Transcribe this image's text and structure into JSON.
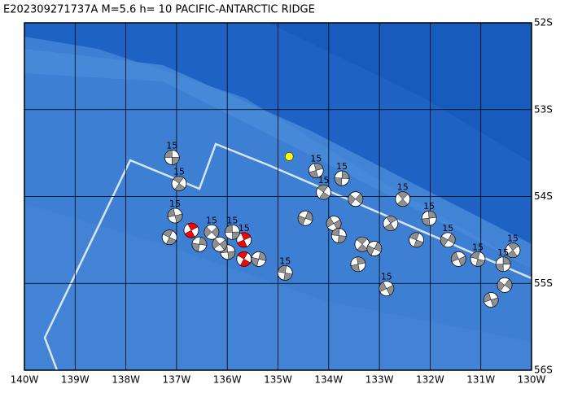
{
  "chart_data": {
    "type": "focal-map",
    "title": "E202309271737A M=5.6 h= 10 PACIFIC-ANTARCTIC RIDGE",
    "xlim": [
      -140,
      -130
    ],
    "ylim": [
      -56,
      -52
    ],
    "xticks": [
      {
        "value": -140,
        "label": "140W"
      },
      {
        "value": -139,
        "label": "139W"
      },
      {
        "value": -138,
        "label": "138W"
      },
      {
        "value": -137,
        "label": "137W"
      },
      {
        "value": -136,
        "label": "136W"
      },
      {
        "value": -135,
        "label": "135W"
      },
      {
        "value": -134,
        "label": "134W"
      },
      {
        "value": -133,
        "label": "133W"
      },
      {
        "value": -132,
        "label": "132W"
      },
      {
        "value": -131,
        "label": "131W"
      },
      {
        "value": -130,
        "label": "130W"
      }
    ],
    "yticks": [
      {
        "value": -52,
        "label": "52S"
      },
      {
        "value": -53,
        "label": "53S"
      },
      {
        "value": -54,
        "label": "54S"
      },
      {
        "value": -55,
        "label": "55S"
      },
      {
        "value": -56,
        "label": "56S"
      }
    ],
    "grid": true,
    "epicenter": {
      "lon": -134.78,
      "lat": -53.54,
      "color": "#ffff00"
    },
    "events": [
      {
        "lon": -137.09,
        "lat": -53.55,
        "label": "15",
        "color": "#909090"
      },
      {
        "lon": -136.95,
        "lat": -53.85,
        "label": "15",
        "color": "#909090"
      },
      {
        "lon": -134.25,
        "lat": -53.7,
        "label": "15",
        "color": "#909090"
      },
      {
        "lon": -134.46,
        "lat": -54.25,
        "color": "#909090"
      },
      {
        "lon": -133.9,
        "lat": -54.31,
        "color": "#909090"
      },
      {
        "lon": -133.8,
        "lat": -54.45,
        "color": "#909090"
      },
      {
        "lon": -133.34,
        "lat": -54.55,
        "color": "#909090"
      },
      {
        "lon": -133.42,
        "lat": -54.78,
        "color": "#909090"
      },
      {
        "lon": -133.1,
        "lat": -54.6,
        "color": "#909090"
      },
      {
        "lon": -132.86,
        "lat": -55.06,
        "label": "15",
        "color": "#909090"
      },
      {
        "lon": -134.86,
        "lat": -54.88,
        "label": "15",
        "color": "#909090"
      },
      {
        "lon": -132.54,
        "lat": -54.03,
        "label": "15",
        "color": "#909090"
      },
      {
        "lon": -132.02,
        "lat": -54.25,
        "label": "15",
        "color": "#909090"
      },
      {
        "lon": -131.65,
        "lat": -54.5,
        "label": "15",
        "color": "#909090"
      },
      {
        "lon": -131.44,
        "lat": -54.72,
        "color": "#909090"
      },
      {
        "lon": -131.06,
        "lat": -54.72,
        "label": "15",
        "color": "#909090"
      },
      {
        "lon": -130.37,
        "lat": -54.62,
        "label": "15",
        "color": "#909090"
      },
      {
        "lon": -130.56,
        "lat": -54.78,
        "label": "15",
        "color": "#909090"
      },
      {
        "lon": -130.53,
        "lat": -55.02,
        "color": "#909090"
      },
      {
        "lon": -130.8,
        "lat": -55.19,
        "color": "#909090"
      },
      {
        "lon": -132.27,
        "lat": -54.5,
        "color": "#909090"
      },
      {
        "lon": -132.78,
        "lat": -54.31,
        "color": "#909090"
      },
      {
        "lon": -133.74,
        "lat": -53.79,
        "label": "15",
        "color": "#909090"
      },
      {
        "lon": -133.47,
        "lat": -54.03,
        "color": "#909090"
      },
      {
        "lon": -137.03,
        "lat": -54.22,
        "label": "15",
        "color": "#909090"
      },
      {
        "lon": -137.14,
        "lat": -54.47,
        "color": "#909090"
      },
      {
        "lon": -136.71,
        "lat": -54.39,
        "color": "#ff0000"
      },
      {
        "lon": -136.55,
        "lat": -54.55,
        "color": "#909090"
      },
      {
        "lon": -136.31,
        "lat": -54.41,
        "label": "15",
        "color": "#909090"
      },
      {
        "lon": -135.99,
        "lat": -54.64,
        "color": "#909090"
      },
      {
        "lon": -135.67,
        "lat": -54.72,
        "color": "#ff0000"
      },
      {
        "lon": -135.67,
        "lat": -54.5,
        "label": "15",
        "color": "#ff0000"
      },
      {
        "lon": -135.38,
        "lat": -54.72,
        "color": "#909090"
      },
      {
        "lon": -136.15,
        "lat": -54.55,
        "color": "#909090"
      },
      {
        "lon": -135.9,
        "lat": -54.41,
        "label": "15",
        "color": "#909090"
      },
      {
        "lon": -134.1,
        "lat": -53.95,
        "label": "15",
        "color": "#909090"
      }
    ]
  }
}
